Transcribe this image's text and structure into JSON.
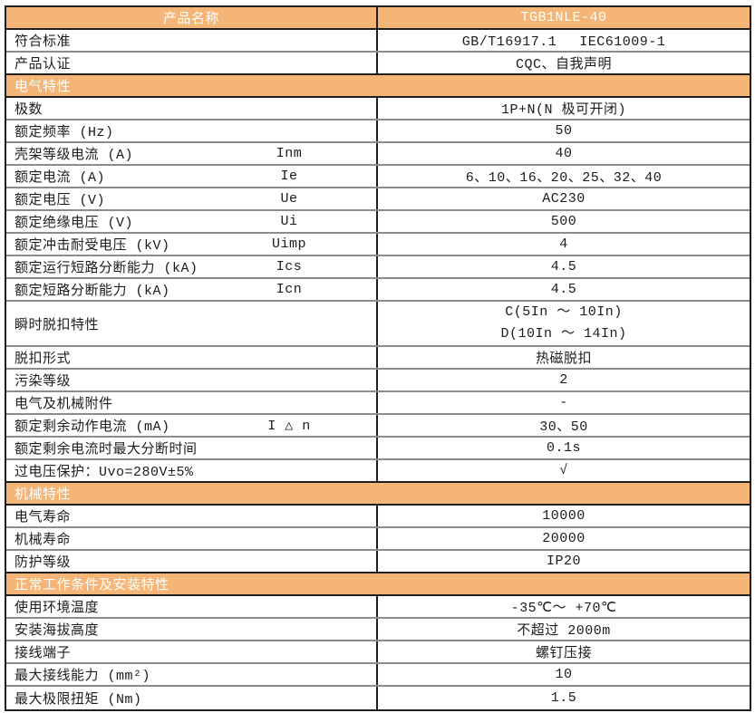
{
  "page": {
    "background": "#FFFFFF"
  },
  "table": {
    "colors": {
      "accent": "#F5B577",
      "header_text": "#FFFFFF",
      "border_dark": "#1F1F1F",
      "border_light": "#8C8C8C",
      "body_text": "#1C1C1C"
    },
    "header": {
      "left": "产品名称",
      "right": "TGB1NLE-40"
    },
    "rows": [
      {
        "type": "data",
        "label": "符合标准",
        "value": "GB/T16917.1　 IEC61009-1"
      },
      {
        "type": "data",
        "label": "产品认证",
        "value": "CQC、自我声明"
      },
      {
        "type": "section",
        "label": "电气特性"
      },
      {
        "type": "data",
        "label": "极数",
        "value": "1P+N(N 极可开闭)"
      },
      {
        "type": "data",
        "label": "额定频率 (Hz)",
        "value": "50"
      },
      {
        "type": "data",
        "label": "壳架等级电流 (A)",
        "symbol": "Inm",
        "value": "40"
      },
      {
        "type": "data",
        "label": "额定电流 (A)",
        "symbol": "Ie",
        "value": "6、10、16、20、25、32、40"
      },
      {
        "type": "data",
        "label": "额定电压 (V)",
        "symbol": "Ue",
        "value": "AC230"
      },
      {
        "type": "data",
        "label": "额定绝缘电压 (V)",
        "symbol": "Ui",
        "value": "500"
      },
      {
        "type": "data",
        "label": "额定冲击耐受电压 (kV)",
        "symbol": "Uimp",
        "value": "4"
      },
      {
        "type": "data",
        "label": "额定运行短路分断能力 (kA)",
        "symbol": "Ics",
        "value": "4.5"
      },
      {
        "type": "data",
        "label": "额定短路分断能力 (kA)",
        "symbol": "Icn",
        "value": "4.5"
      },
      {
        "type": "data",
        "label": "瞬时脱扣特性",
        "tall": true,
        "lines": [
          "C(5In ～ 10In)",
          "D(10In ～ 14In)"
        ]
      },
      {
        "type": "data",
        "label": "脱扣形式",
        "value": "热磁脱扣"
      },
      {
        "type": "data",
        "label": "污染等级",
        "value": "2"
      },
      {
        "type": "data",
        "label": "电气及机械附件",
        "value": "-"
      },
      {
        "type": "data",
        "label": "额定剩余动作电流 (mA)",
        "symbol": "I △ n",
        "value": "30、50"
      },
      {
        "type": "data",
        "label": "额定剩余电流时最大分断时间",
        "value": "0.1s"
      },
      {
        "type": "data",
        "label": "过电压保护：Uvo=280V±5%",
        "value": "√"
      },
      {
        "type": "section",
        "label": "机械特性"
      },
      {
        "type": "data",
        "label": "电气寿命",
        "value": "10000"
      },
      {
        "type": "data",
        "label": "机械寿命",
        "value": "20000"
      },
      {
        "type": "data",
        "label": "防护等级",
        "value": "IP20"
      },
      {
        "type": "section",
        "label": "正常工作条件及安装特性"
      },
      {
        "type": "data",
        "label": "使用环境温度",
        "value": "-35℃～ +70℃"
      },
      {
        "type": "data",
        "label": "安装海拔高度",
        "value": "不超过 2000m"
      },
      {
        "type": "data",
        "label": "接线端子",
        "value": "螺钉压接"
      },
      {
        "type": "data",
        "label": "最大接线能力 (mm²)",
        "value": "10"
      },
      {
        "type": "data",
        "label": "最大极限扭矩 (Nm)",
        "value": "1.5"
      }
    ]
  }
}
